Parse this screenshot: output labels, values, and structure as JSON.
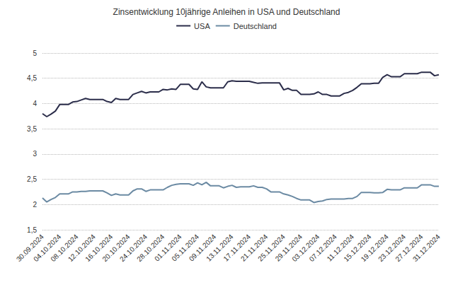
{
  "chart_data": {
    "type": "line",
    "title": "Zinsentwicklung 10jährige Anleihen in USA und Deutschland",
    "categories": [
      "30.09.2024",
      null,
      null,
      null,
      "04.10.2024",
      null,
      null,
      null,
      "08.10.2024",
      null,
      null,
      null,
      "12.10.2024",
      null,
      null,
      null,
      "16.10.2024",
      null,
      null,
      null,
      "20.10.2024",
      null,
      null,
      null,
      "24.10.2024",
      null,
      null,
      null,
      "28.10.2024",
      null,
      null,
      null,
      "01.11.2024",
      null,
      null,
      null,
      "05.11.2024",
      null,
      null,
      null,
      "09.11.2024",
      null,
      null,
      null,
      "13.11.2024",
      null,
      null,
      null,
      "17.11.2024",
      null,
      null,
      null,
      "21.11.2024",
      null,
      null,
      null,
      "25.11.2024",
      null,
      null,
      null,
      "29.11.2024",
      null,
      null,
      null,
      "03.12.2024",
      null,
      null,
      null,
      "07.12.2024",
      null,
      null,
      null,
      "11.12.2024",
      null,
      null,
      null,
      "15.12.2024",
      null,
      null,
      null,
      "19.12.2024",
      null,
      null,
      null,
      "23.12.2024",
      null,
      null,
      null,
      "27.12.2024",
      null,
      null,
      null,
      "31.12.2024"
    ],
    "series": [
      {
        "name": "USA",
        "color": "#2b2d4a",
        "values": [
          3.8,
          3.74,
          3.79,
          3.85,
          3.98,
          3.98,
          3.98,
          4.03,
          4.04,
          4.07,
          4.1,
          4.08,
          4.08,
          4.08,
          4.08,
          4.04,
          4.02,
          4.1,
          4.08,
          4.08,
          4.08,
          4.18,
          4.21,
          4.24,
          4.21,
          4.23,
          4.23,
          4.23,
          4.28,
          4.27,
          4.29,
          4.28,
          4.38,
          4.38,
          4.38,
          4.29,
          4.28,
          4.43,
          4.33,
          4.31,
          4.31,
          4.31,
          4.31,
          4.43,
          4.45,
          4.44,
          4.44,
          4.44,
          4.44,
          4.42,
          4.4,
          4.41,
          4.41,
          4.41,
          4.41,
          4.41,
          4.27,
          4.3,
          4.26,
          4.26,
          4.18,
          4.18,
          4.18,
          4.19,
          4.23,
          4.18,
          4.18,
          4.15,
          4.15,
          4.15,
          4.2,
          4.22,
          4.26,
          4.32,
          4.39,
          4.39,
          4.39,
          4.4,
          4.4,
          4.52,
          4.57,
          4.53,
          4.53,
          4.53,
          4.59,
          4.59,
          4.59,
          4.59,
          4.62,
          4.62,
          4.62,
          4.55,
          4.57
        ]
      },
      {
        "name": "Deutschland",
        "color": "#6b8aa3",
        "values": [
          2.13,
          2.05,
          2.1,
          2.14,
          2.21,
          2.21,
          2.21,
          2.25,
          2.25,
          2.26,
          2.26,
          2.27,
          2.27,
          2.27,
          2.27,
          2.23,
          2.18,
          2.21,
          2.19,
          2.19,
          2.19,
          2.27,
          2.31,
          2.31,
          2.26,
          2.29,
          2.29,
          2.29,
          2.29,
          2.34,
          2.38,
          2.4,
          2.41,
          2.41,
          2.41,
          2.38,
          2.43,
          2.39,
          2.44,
          2.37,
          2.37,
          2.37,
          2.33,
          2.36,
          2.38,
          2.34,
          2.35,
          2.35,
          2.35,
          2.37,
          2.34,
          2.34,
          2.31,
          2.25,
          2.25,
          2.25,
          2.21,
          2.19,
          2.16,
          2.12,
          2.09,
          2.09,
          2.09,
          2.04,
          2.06,
          2.07,
          2.1,
          2.11,
          2.11,
          2.11,
          2.11,
          2.12,
          2.12,
          2.16,
          2.24,
          2.24,
          2.24,
          2.23,
          2.23,
          2.24,
          2.3,
          2.29,
          2.29,
          2.29,
          2.33,
          2.33,
          2.33,
          2.33,
          2.39,
          2.39,
          2.39,
          2.36,
          2.36
        ]
      }
    ],
    "ylim": [
      1.5,
      5
    ],
    "yticks": [
      {
        "value": 1.5,
        "label": "1,5"
      },
      2,
      {
        "value": 2.5,
        "label": "2,5"
      },
      3,
      {
        "value": 3.5,
        "label": "3,5"
      },
      4,
      {
        "value": 4.5,
        "label": "4,5"
      },
      5
    ],
    "grid": true,
    "legend": "top"
  }
}
